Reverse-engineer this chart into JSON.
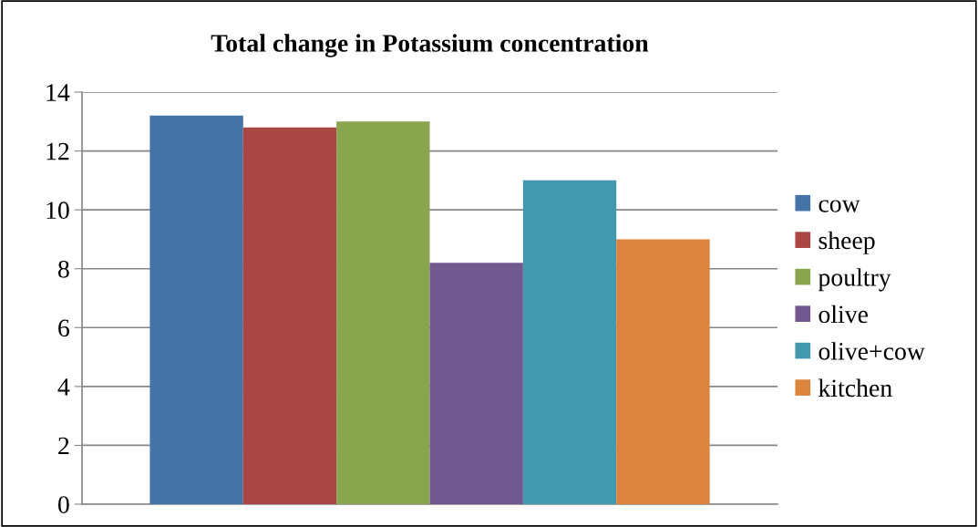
{
  "chart_data": {
    "type": "bar",
    "title": "Total change in Potassium concentration",
    "categories": [
      null
    ],
    "series": [
      {
        "name": "cow",
        "color": "#4572a7",
        "values": [
          13.2
        ]
      },
      {
        "name": "sheep",
        "color": "#aa4643",
        "values": [
          12.8
        ]
      },
      {
        "name": "poultry",
        "color": "#89a54e",
        "values": [
          13.0
        ]
      },
      {
        "name": "olive",
        "color": "#71588f",
        "values": [
          8.2
        ]
      },
      {
        "name": "olive+cow",
        "color": "#4198af",
        "values": [
          11.0
        ]
      },
      {
        "name": "kitchen",
        "color": "#db843d",
        "values": [
          9.0
        ]
      }
    ],
    "ylim": [
      0,
      14
    ],
    "yticks": [
      0,
      2,
      4,
      6,
      8,
      10,
      12,
      14
    ],
    "grid": "y",
    "legend": "right"
  }
}
